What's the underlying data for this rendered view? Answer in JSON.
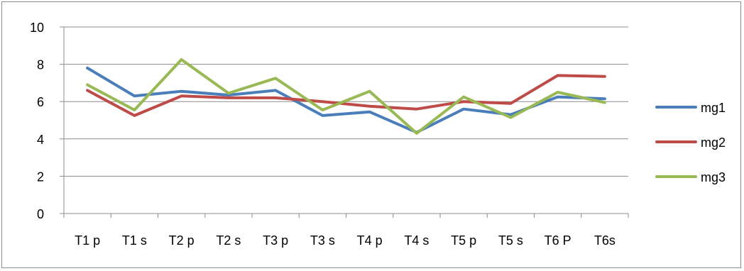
{
  "chart_data": {
    "type": "line",
    "title": "",
    "xlabel": "",
    "ylabel": "",
    "categories": [
      "T1 p",
      "T1 s",
      "T2 p",
      "T2 s",
      "T3 p",
      "T3 s",
      "T4 p",
      "T4 s",
      "T5 p",
      "T5 s",
      "T6 P",
      "T6s"
    ],
    "ylim": [
      0,
      10
    ],
    "yticks": [
      0,
      2,
      4,
      6,
      8,
      10
    ],
    "grid": true,
    "legend_position": "right",
    "series": [
      {
        "name": "mg1",
        "color": "#4a7ebb",
        "values": [
          7.8,
          6.3,
          6.55,
          6.35,
          6.6,
          5.25,
          5.45,
          4.35,
          5.6,
          5.3,
          6.25,
          6.15
        ]
      },
      {
        "name": "mg2",
        "color": "#be4b48",
        "values": [
          6.6,
          5.25,
          6.3,
          6.2,
          6.2,
          6.0,
          5.75,
          5.6,
          6.0,
          5.9,
          7.4,
          7.35
        ]
      },
      {
        "name": "mg3",
        "color": "#98b954",
        "values": [
          6.9,
          5.55,
          8.25,
          6.45,
          7.25,
          5.55,
          6.55,
          4.3,
          6.25,
          5.15,
          6.5,
          5.95
        ]
      }
    ]
  }
}
